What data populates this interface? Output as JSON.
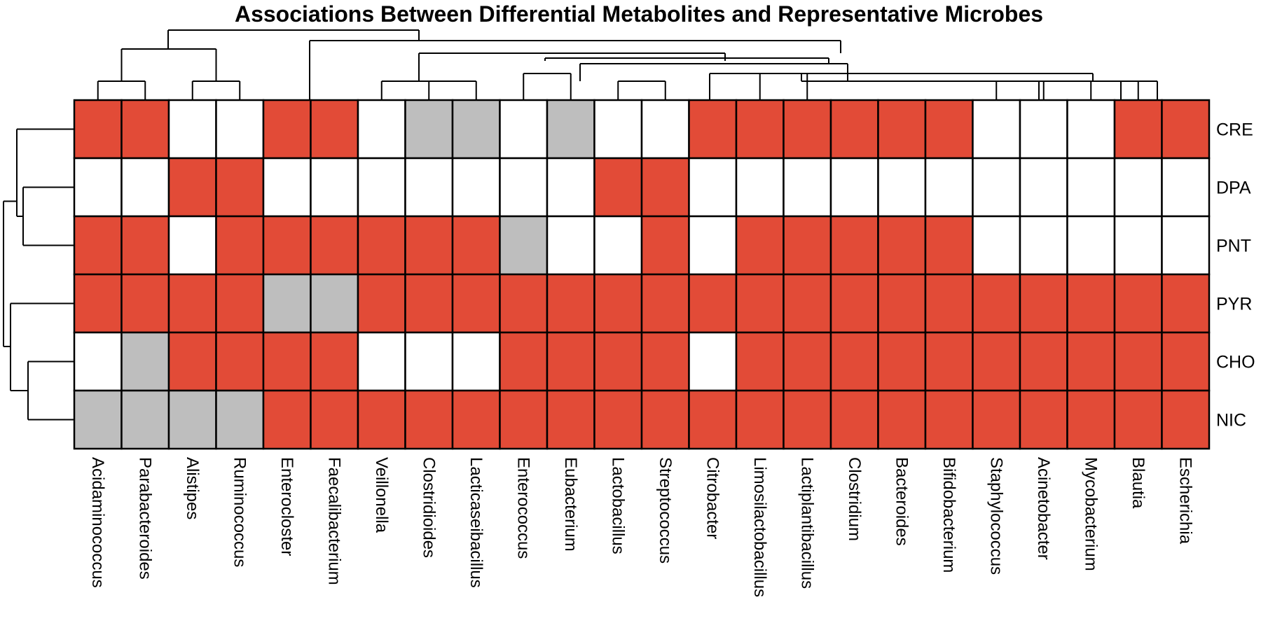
{
  "chart_data": {
    "type": "heatmap",
    "title": "Associations Between Differential Metabolites and Representative Microbes",
    "rows": [
      "CRE",
      "DPA",
      "PNT",
      "PYR",
      "CHO",
      "NIC"
    ],
    "columns": [
      "Acidaminococcus",
      "Parabacteroides",
      "Alistipes",
      "Ruminococcus",
      "Enterocloster",
      "Faecalibacterium",
      "Veillonella",
      "Clostridioides",
      "Lacticaseibacillus",
      "Enterococcus",
      "Eubacterium",
      "Lactobacillus",
      "Streptococcus",
      "Citrobacter",
      "Limosilactobacillus",
      "Lactiplantibacillus",
      "Clostridium",
      "Bacteroides",
      "Bifidobacterium",
      "Staphylococcus",
      "Acinetobacter",
      "Mycobacterium",
      "Blautia",
      "Escherichia"
    ],
    "values": [
      [
        1,
        1,
        0,
        0,
        1,
        1,
        0,
        2,
        2,
        0,
        2,
        0,
        0,
        1,
        1,
        1,
        1,
        1,
        1,
        0,
        0,
        0,
        1,
        1
      ],
      [
        0,
        0,
        1,
        1,
        0,
        0,
        0,
        0,
        0,
        0,
        0,
        1,
        1,
        0,
        0,
        0,
        0,
        0,
        0,
        0,
        0,
        0,
        0,
        0
      ],
      [
        1,
        1,
        0,
        1,
        1,
        1,
        1,
        1,
        1,
        2,
        0,
        0,
        1,
        0,
        1,
        1,
        1,
        1,
        1,
        0,
        0,
        0,
        0,
        0
      ],
      [
        1,
        1,
        1,
        1,
        2,
        2,
        1,
        1,
        1,
        1,
        1,
        1,
        1,
        1,
        1,
        1,
        1,
        1,
        1,
        1,
        1,
        1,
        1,
        1
      ],
      [
        0,
        2,
        1,
        1,
        1,
        1,
        0,
        0,
        0,
        1,
        1,
        1,
        1,
        0,
        1,
        1,
        1,
        1,
        1,
        1,
        1,
        1,
        1,
        1
      ],
      [
        2,
        2,
        2,
        2,
        1,
        1,
        1,
        1,
        1,
        1,
        1,
        1,
        1,
        1,
        1,
        1,
        1,
        1,
        1,
        1,
        1,
        1,
        1,
        1
      ]
    ],
    "value_colors": {
      "0": "#ffffff",
      "1": "#e24b37",
      "2": "#bebebe"
    },
    "legend": "none",
    "row_dendrogram": true,
    "column_dendrogram": true
  }
}
